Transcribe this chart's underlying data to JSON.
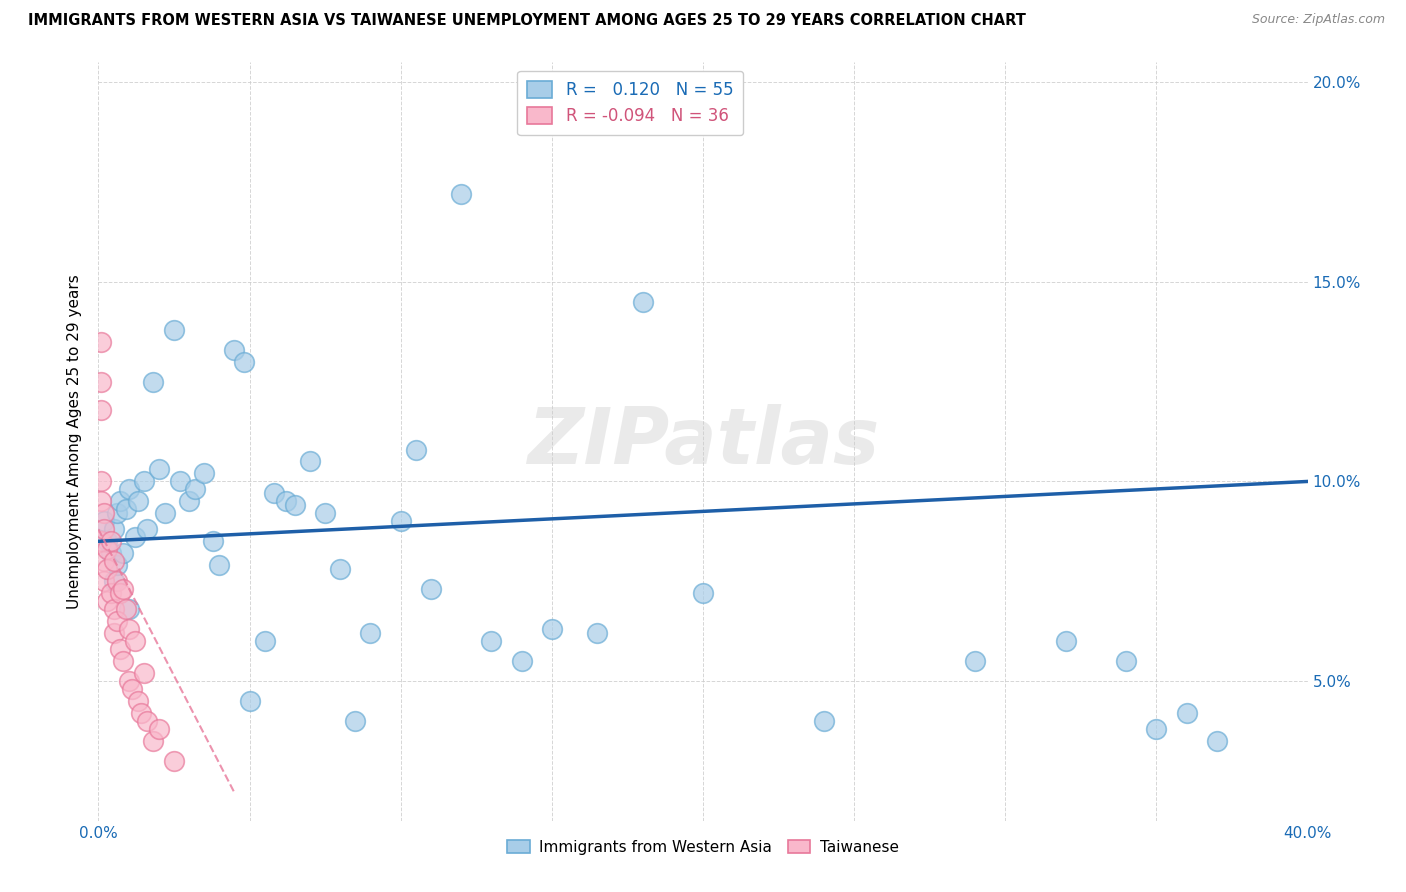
{
  "title": "IMMIGRANTS FROM WESTERN ASIA VS TAIWANESE UNEMPLOYMENT AMONG AGES 25 TO 29 YEARS CORRELATION CHART",
  "source": "Source: ZipAtlas.com",
  "ylabel": "Unemployment Among Ages 25 to 29 years",
  "xlim": [
    0.0,
    0.4
  ],
  "ylim": [
    0.015,
    0.205
  ],
  "yticks": [
    0.05,
    0.1,
    0.15,
    0.2
  ],
  "ytick_labels": [
    "5.0%",
    "10.0%",
    "15.0%",
    "20.0%"
  ],
  "xticks": [
    0.0,
    0.05,
    0.1,
    0.15,
    0.2,
    0.25,
    0.3,
    0.35,
    0.4
  ],
  "legend1_label": "Immigrants from Western Asia",
  "legend2_label": "Taiwanese",
  "r1": "0.120",
  "n1": "55",
  "r2": "-0.094",
  "n2": "36",
  "blue_color": "#a8cde8",
  "blue_edge": "#6aacd5",
  "pink_color": "#f9b8cb",
  "pink_edge": "#e8789a",
  "trend_blue": "#1e5fa8",
  "trend_pink": "#e8789a",
  "watermark": "ZIPatlas",
  "blue_x": [
    0.002,
    0.003,
    0.004,
    0.005,
    0.005,
    0.006,
    0.006,
    0.007,
    0.008,
    0.009,
    0.01,
    0.01,
    0.012,
    0.013,
    0.015,
    0.016,
    0.018,
    0.02,
    0.022,
    0.025,
    0.027,
    0.03,
    0.032,
    0.035,
    0.038,
    0.04,
    0.045,
    0.048,
    0.05,
    0.055,
    0.058,
    0.062,
    0.065,
    0.07,
    0.075,
    0.08,
    0.085,
    0.09,
    0.1,
    0.105,
    0.11,
    0.12,
    0.13,
    0.14,
    0.15,
    0.165,
    0.18,
    0.2,
    0.24,
    0.29,
    0.32,
    0.34,
    0.35,
    0.36,
    0.37
  ],
  "blue_y": [
    0.09,
    0.085,
    0.082,
    0.088,
    0.075,
    0.079,
    0.092,
    0.095,
    0.082,
    0.093,
    0.098,
    0.068,
    0.086,
    0.095,
    0.1,
    0.088,
    0.125,
    0.103,
    0.092,
    0.138,
    0.1,
    0.095,
    0.098,
    0.102,
    0.085,
    0.079,
    0.133,
    0.13,
    0.045,
    0.06,
    0.097,
    0.095,
    0.094,
    0.105,
    0.092,
    0.078,
    0.04,
    0.062,
    0.09,
    0.108,
    0.073,
    0.172,
    0.06,
    0.055,
    0.063,
    0.062,
    0.145,
    0.072,
    0.04,
    0.055,
    0.06,
    0.055,
    0.038,
    0.042,
    0.035
  ],
  "pink_x": [
    0.001,
    0.001,
    0.001,
    0.001,
    0.001,
    0.001,
    0.002,
    0.002,
    0.002,
    0.002,
    0.003,
    0.003,
    0.003,
    0.004,
    0.004,
    0.005,
    0.005,
    0.005,
    0.006,
    0.006,
    0.007,
    0.007,
    0.008,
    0.008,
    0.009,
    0.01,
    0.01,
    0.011,
    0.012,
    0.013,
    0.014,
    0.015,
    0.016,
    0.018,
    0.02,
    0.025
  ],
  "pink_y": [
    0.135,
    0.125,
    0.118,
    0.1,
    0.095,
    0.085,
    0.092,
    0.088,
    0.08,
    0.075,
    0.083,
    0.078,
    0.07,
    0.085,
    0.072,
    0.08,
    0.068,
    0.062,
    0.075,
    0.065,
    0.072,
    0.058,
    0.073,
    0.055,
    0.068,
    0.063,
    0.05,
    0.048,
    0.06,
    0.045,
    0.042,
    0.052,
    0.04,
    0.035,
    0.038,
    0.03
  ],
  "blue_trend_x": [
    0.0,
    0.4
  ],
  "blue_trend_y": [
    0.085,
    0.1
  ],
  "pink_trend_x": [
    0.0,
    0.045
  ],
  "pink_trend_y": [
    0.088,
    0.022
  ]
}
